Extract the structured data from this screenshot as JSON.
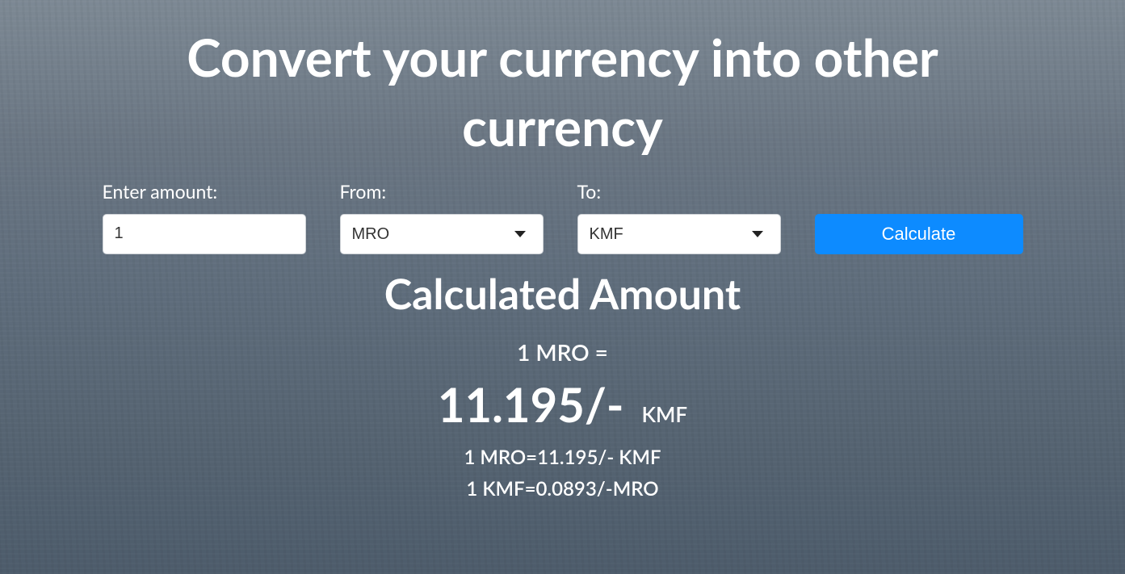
{
  "colors": {
    "button_bg": "#0d8bff",
    "button_text": "#ffffff",
    "input_bg": "#ffffff",
    "input_border": "#cfd3d7",
    "text": "#ffffff",
    "caret": "#222222",
    "background_gradient_top": "#7d8994",
    "background_gradient_bottom": "#4d5c6b"
  },
  "title": "Convert your currency into other currency",
  "form": {
    "amount_label": "Enter amount:",
    "amount_value": "1",
    "from_label": "From:",
    "from_value": "MRO",
    "to_label": "To:",
    "to_value": "KMF",
    "button_label": "Calculate"
  },
  "result": {
    "heading": "Calculated Amount",
    "line1": "1 MRO =",
    "value": "11.195/-",
    "currency": "KMF",
    "rate_forward": "1 MRO=11.195/- KMF",
    "rate_reverse": "1 KMF=0.0893/-MRO"
  }
}
